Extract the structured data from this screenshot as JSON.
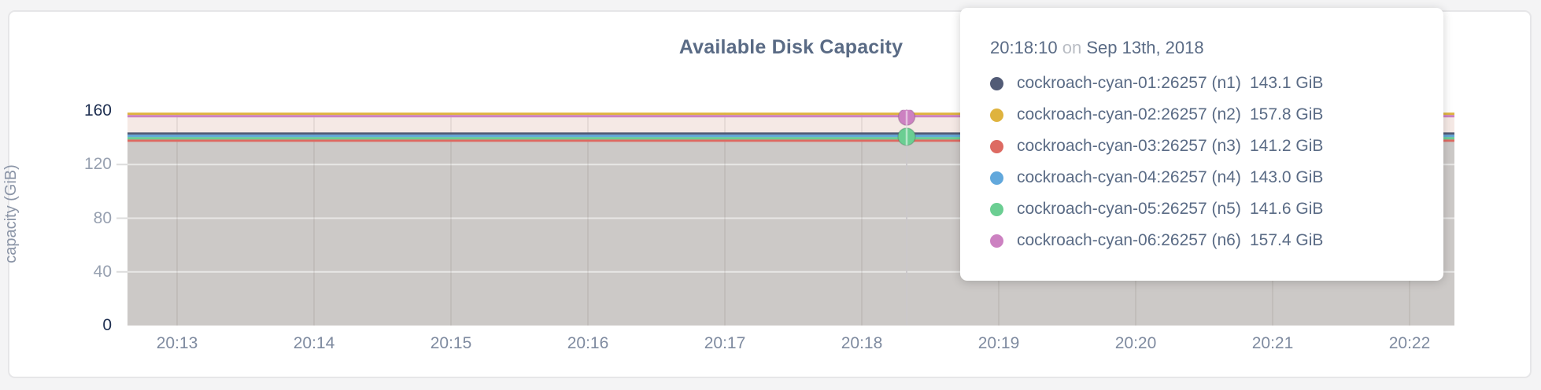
{
  "window": {
    "background": "#f4f4f5"
  },
  "card": {
    "background": "#ffffff",
    "border_color": "#e6e6e8"
  },
  "chart": {
    "title": "Available Disk Capacity",
    "title_color": "#5a6b85",
    "y_axis": {
      "label": "capacity (GiB)",
      "ticks": [
        {
          "label": "160",
          "value": 160,
          "emphasis": true
        },
        {
          "label": "120",
          "value": 120,
          "emphasis": false
        },
        {
          "label": "80",
          "value": 80,
          "emphasis": false
        },
        {
          "label": "40",
          "value": 40,
          "emphasis": false
        },
        {
          "label": "0",
          "value": 0,
          "emphasis": true
        }
      ]
    },
    "x_axis": {
      "ticks": [
        "20:13",
        "20:14",
        "20:15",
        "20:16",
        "20:17",
        "20:18",
        "20:19",
        "20:20",
        "20:21",
        "20:22"
      ]
    }
  },
  "chart_data": {
    "type": "area",
    "title": "Available Disk Capacity",
    "xlabel": "",
    "ylabel": "capacity (GiB)",
    "ylim": [
      0,
      160
    ],
    "grid": true,
    "legend_position": "hover-tooltip",
    "x": [
      "20:13",
      "20:14",
      "20:15",
      "20:16",
      "20:17",
      "20:18",
      "20:19",
      "20:20",
      "20:21",
      "20:22"
    ],
    "hover_time": "20:18:10",
    "hover_marker_series": [
      "cockroach-cyan-06:26257 (n6)",
      "cockroach-cyan-05:26257 (n5)"
    ],
    "series": [
      {
        "name": "cockroach-cyan-01:26257 (n1)",
        "color": "#525b76",
        "value_gib": 143.1,
        "values": [
          143.1,
          143.1,
          143.1,
          143.1,
          143.1,
          143.1,
          143.1,
          143.1,
          143.1,
          143.1
        ]
      },
      {
        "name": "cockroach-cyan-02:26257 (n2)",
        "color": "#dfb33e",
        "value_gib": 157.8,
        "values": [
          157.8,
          157.8,
          157.8,
          157.8,
          157.8,
          157.8,
          157.8,
          157.8,
          157.8,
          157.8
        ]
      },
      {
        "name": "cockroach-cyan-03:26257 (n3)",
        "color": "#dd6a62",
        "value_gib": 141.2,
        "values": [
          141.2,
          141.2,
          141.2,
          141.2,
          141.2,
          141.2,
          141.2,
          141.2,
          141.2,
          141.2
        ]
      },
      {
        "name": "cockroach-cyan-04:26257 (n4)",
        "color": "#62a8dc",
        "value_gib": 143.0,
        "values": [
          143.0,
          143.0,
          143.0,
          143.0,
          143.0,
          143.0,
          143.0,
          143.0,
          143.0,
          143.0
        ]
      },
      {
        "name": "cockroach-cyan-05:26257 (n5)",
        "color": "#6bce92",
        "value_gib": 141.6,
        "values": [
          141.6,
          141.6,
          141.6,
          141.6,
          141.6,
          141.6,
          141.6,
          141.6,
          141.6,
          141.6
        ]
      },
      {
        "name": "cockroach-cyan-06:26257 (n6)",
        "color": "#cc81c1",
        "value_gib": 157.4,
        "values": [
          157.4,
          157.4,
          157.4,
          157.4,
          157.4,
          157.4,
          157.4,
          157.4,
          157.4,
          157.4
        ]
      }
    ]
  },
  "tooltip": {
    "time": "20:18:10",
    "connector": "on",
    "date": "Sep 13th, 2018",
    "rows": [
      {
        "name": "cockroach-cyan-01:26257 (n1)",
        "value": "143.1 GiB",
        "color": "#525b76"
      },
      {
        "name": "cockroach-cyan-02:26257 (n2)",
        "value": "157.8 GiB",
        "color": "#dfb33e"
      },
      {
        "name": "cockroach-cyan-03:26257 (n3)",
        "value": "141.2 GiB",
        "color": "#dd6a62"
      },
      {
        "name": "cockroach-cyan-04:26257 (n4)",
        "value": "143.0 GiB",
        "color": "#62a8dc"
      },
      {
        "name": "cockroach-cyan-05:26257 (n5)",
        "value": "141.6 GiB",
        "color": "#6bce92"
      },
      {
        "name": "cockroach-cyan-06:26257 (n6)",
        "value": "157.4 GiB",
        "color": "#cc81c1"
      }
    ]
  }
}
